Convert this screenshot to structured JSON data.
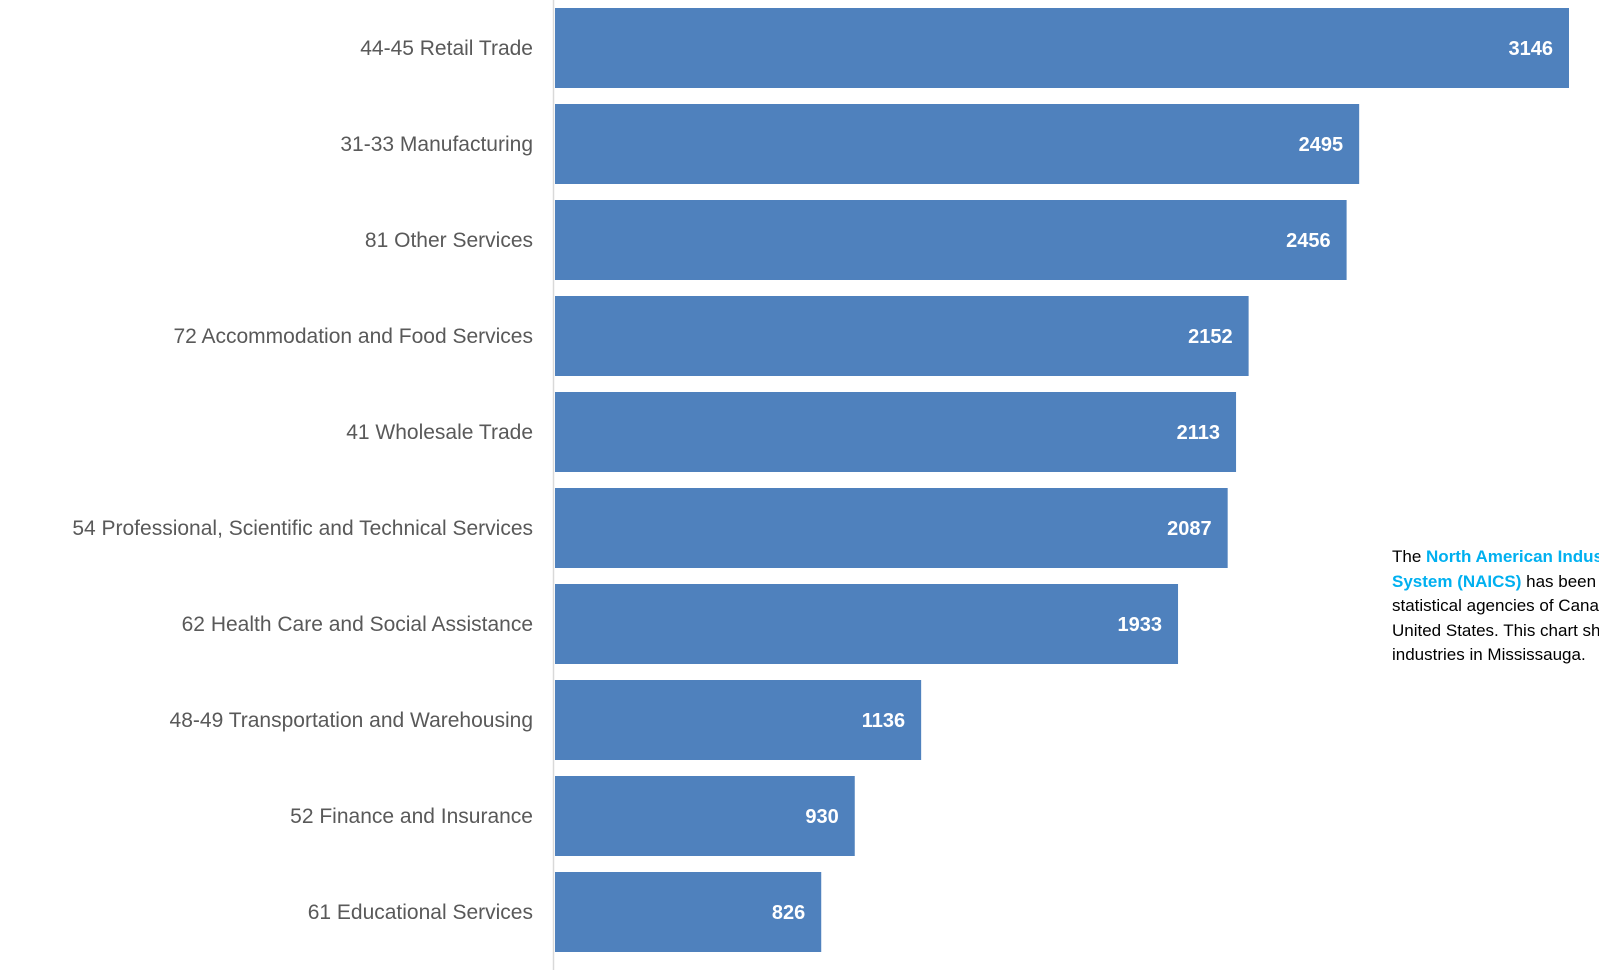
{
  "chart_data": {
    "type": "bar",
    "orientation": "horizontal",
    "categories": [
      "44-45 Retail Trade",
      "31-33 Manufacturing",
      "81 Other Services",
      "72 Accommodation and Food Services",
      "41 Wholesale Trade",
      "54 Professional, Scientific and Technical Services",
      "62 Health Care and Social Assistance",
      "48-49 Transportation and Warehousing",
      "52 Finance and Insurance",
      "61 Educational Services"
    ],
    "values": [
      3146,
      2495,
      2456,
      2152,
      2113,
      2087,
      1933,
      1136,
      930,
      826
    ],
    "data_labels": [
      "3146",
      "2495",
      "2456",
      "2152",
      "2113",
      "2087",
      "1933",
      "1136",
      "930",
      "826"
    ],
    "xlim": [
      0,
      3146
    ],
    "grid": false,
    "legend": "none",
    "bar_color": "#4f81bd",
    "label_color": "#595959",
    "value_label_color": "#ffffff"
  },
  "note": {
    "line1_prefix": "The ",
    "line1_link": "North American Industry Classification",
    "line2_link": "System (NAICS)",
    "line2_rest": " has been developed by the",
    "line3": "statistical agencies of Canada, Mexico and the",
    "line4": "United States. This chart shows the top",
    "line5": "industries in Mississauga.",
    "link_color": "#00b0f0"
  }
}
